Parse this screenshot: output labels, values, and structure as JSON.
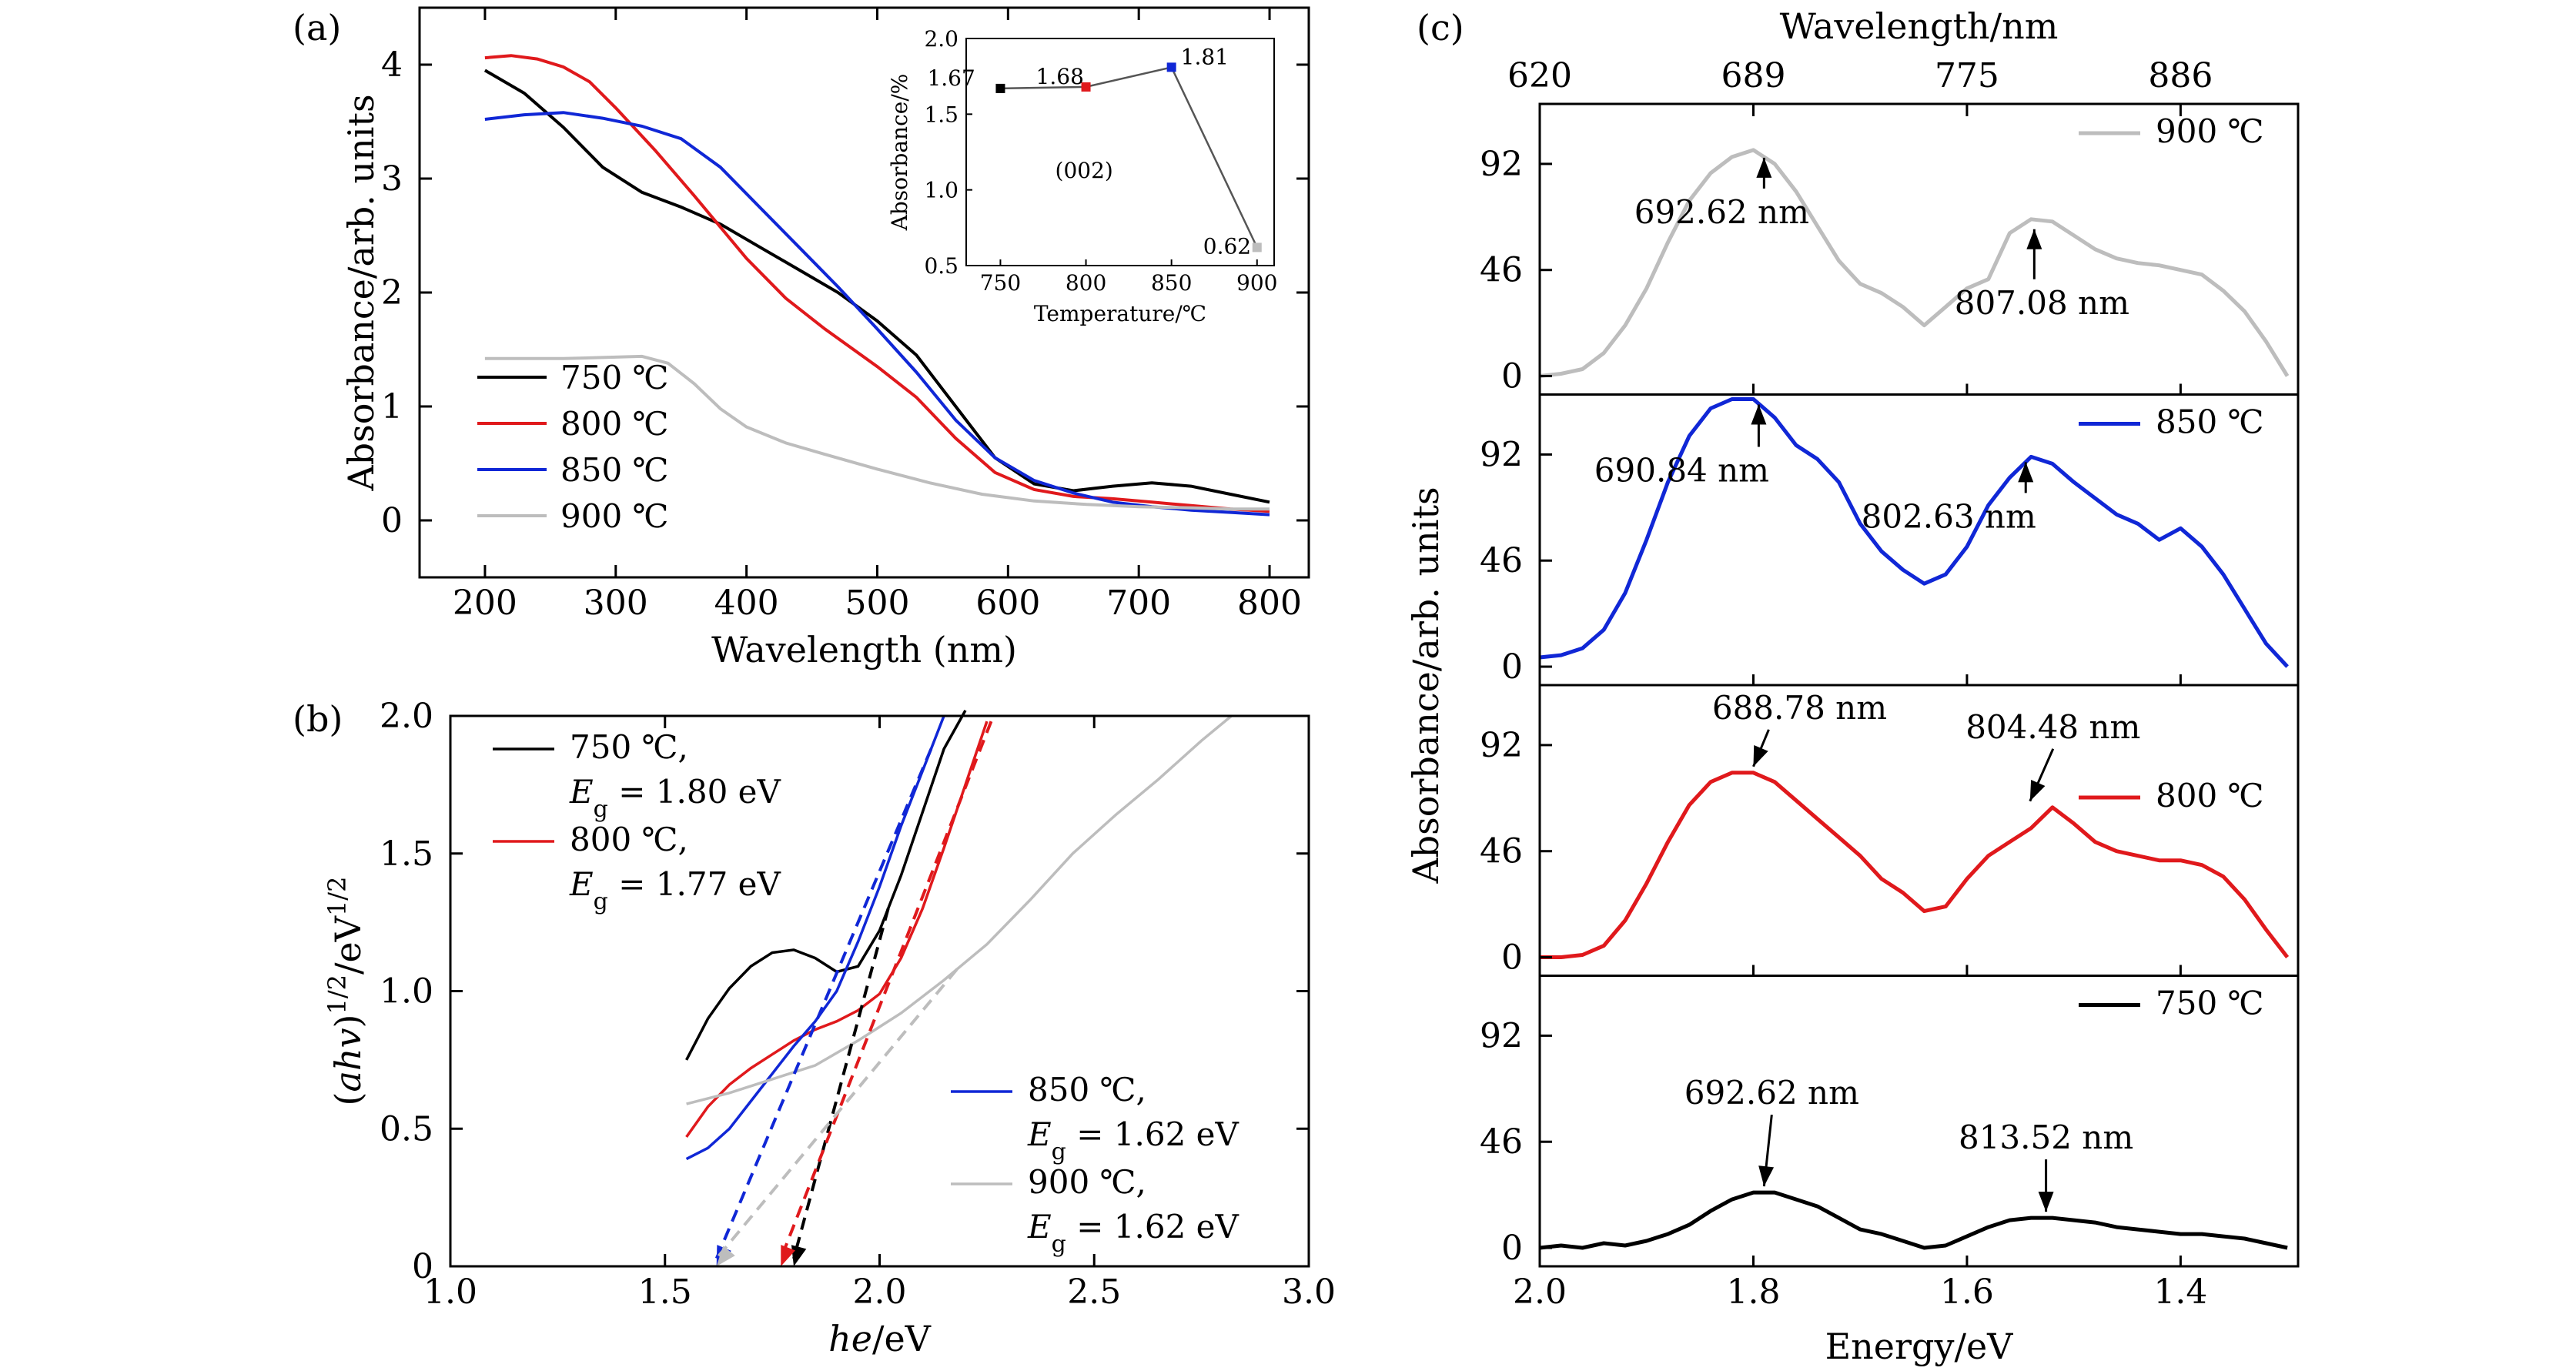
{
  "panel_labels": [
    "(a)",
    "(b)",
    "(c)"
  ],
  "colors": {
    "750": "#000000",
    "800": "#e0191c",
    "850": "#1027d6",
    "900": "#bdbdbd"
  },
  "chart_data": [
    {
      "id": "a",
      "type": "line",
      "xlabel": "Wavelength (nm)",
      "ylabel": "Absorbance/arb. units",
      "xlim": [
        150,
        830
      ],
      "ylim": [
        -0.5,
        4.5
      ],
      "xticks": [
        200,
        300,
        400,
        500,
        600,
        700,
        800
      ],
      "yticks": [
        0,
        1,
        2,
        3,
        4
      ],
      "legend_position": "bottom-left",
      "series": [
        {
          "name": "750 ℃",
          "color": "#000000",
          "x": [
            200,
            230,
            260,
            290,
            320,
            350,
            380,
            410,
            440,
            470,
            500,
            530,
            560,
            590,
            620,
            650,
            680,
            710,
            740,
            770,
            800
          ],
          "y": [
            3.95,
            3.75,
            3.45,
            3.1,
            2.88,
            2.75,
            2.6,
            2.4,
            2.2,
            2.0,
            1.75,
            1.45,
            1.0,
            0.55,
            0.32,
            0.26,
            0.3,
            0.33,
            0.3,
            0.23,
            0.16
          ]
        },
        {
          "name": "800 ℃",
          "color": "#e0191c",
          "x": [
            200,
            220,
            240,
            260,
            280,
            300,
            330,
            360,
            400,
            430,
            460,
            500,
            530,
            560,
            590,
            620,
            650,
            680,
            710,
            740,
            770,
            800
          ],
          "y": [
            4.06,
            4.08,
            4.05,
            3.98,
            3.85,
            3.62,
            3.25,
            2.85,
            2.3,
            1.95,
            1.68,
            1.35,
            1.08,
            0.72,
            0.42,
            0.27,
            0.21,
            0.19,
            0.16,
            0.13,
            0.1,
            0.08
          ]
        },
        {
          "name": "850 ℃",
          "color": "#1027d6",
          "x": [
            200,
            230,
            260,
            290,
            320,
            350,
            380,
            410,
            440,
            470,
            500,
            530,
            560,
            590,
            620,
            650,
            680,
            710,
            740,
            770,
            800
          ],
          "y": [
            3.52,
            3.56,
            3.58,
            3.53,
            3.46,
            3.35,
            3.1,
            2.75,
            2.4,
            2.05,
            1.68,
            1.3,
            0.88,
            0.55,
            0.35,
            0.24,
            0.16,
            0.12,
            0.09,
            0.07,
            0.05
          ]
        },
        {
          "name": "900 ℃",
          "color": "#bdbdbd",
          "x": [
            200,
            230,
            260,
            290,
            320,
            340,
            360,
            380,
            400,
            430,
            460,
            500,
            540,
            580,
            620,
            660,
            700,
            740,
            770,
            800
          ],
          "y": [
            1.42,
            1.42,
            1.42,
            1.43,
            1.44,
            1.38,
            1.2,
            0.98,
            0.82,
            0.68,
            0.58,
            0.45,
            0.33,
            0.23,
            0.17,
            0.14,
            0.12,
            0.11,
            0.1,
            0.1
          ]
        }
      ],
      "inset": {
        "type": "line",
        "xlabel": "Temperature/℃",
        "ylabel": "Absorbance/%",
        "xlim": [
          730,
          910
        ],
        "ylim": [
          0.5,
          2.0
        ],
        "xticks": [
          750,
          800,
          850,
          900
        ],
        "yticks": [
          0.5,
          1.0,
          1.5,
          2.0
        ],
        "annotation": "(002)",
        "x": [
          750,
          800,
          850,
          900
        ],
        "y": [
          1.67,
          1.68,
          1.81,
          0.62
        ],
        "labels": [
          "1.67",
          "1.68",
          "1.81",
          "0.62"
        ],
        "point_colors": [
          "#000000",
          "#e0191c",
          "#1027d6",
          "#bdbdbd"
        ]
      }
    },
    {
      "id": "b",
      "type": "line",
      "xlabel": "he/eV",
      "ylabel": "(ahv)^1/2/eV^1/2",
      "xlim": [
        1.0,
        3.0
      ],
      "ylim": [
        0,
        2.0
      ],
      "xticks": [
        "1.0",
        "1.5",
        "2.0",
        "2.5",
        "3.0"
      ],
      "yticks": [
        "0",
        "0.5",
        "1.0",
        "1.5",
        "2.0"
      ],
      "legend": [
        {
          "temp": "750 ℃,",
          "eg": "= 1.80 eV",
          "color": "#000000"
        },
        {
          "temp": "800 ℃,",
          "eg": "= 1.77 eV",
          "color": "#e0191c"
        },
        {
          "temp": "850 ℃,",
          "eg": "= 1.62 eV",
          "color": "#1027d6"
        },
        {
          "temp": "900 ℃,",
          "eg": "= 1.62 eV",
          "color": "#bdbdbd"
        }
      ],
      "series": [
        {
          "name": "750 ℃",
          "color": "#000000",
          "x": [
            1.55,
            1.6,
            1.65,
            1.7,
            1.75,
            1.8,
            1.85,
            1.9,
            1.95,
            2.0,
            2.05,
            2.1,
            2.15,
            2.2
          ],
          "y": [
            0.75,
            0.9,
            1.01,
            1.09,
            1.14,
            1.15,
            1.12,
            1.07,
            1.09,
            1.22,
            1.42,
            1.65,
            1.88,
            2.02
          ]
        },
        {
          "name": "800 ℃",
          "color": "#e0191c",
          "x": [
            1.55,
            1.6,
            1.65,
            1.7,
            1.75,
            1.8,
            1.85,
            1.9,
            1.95,
            2.0,
            2.05,
            2.1,
            2.15,
            2.2,
            2.25
          ],
          "y": [
            0.47,
            0.58,
            0.66,
            0.72,
            0.77,
            0.82,
            0.86,
            0.89,
            0.93,
            0.99,
            1.12,
            1.3,
            1.52,
            1.75,
            1.98
          ]
        },
        {
          "name": "850 ℃",
          "color": "#1027d6",
          "x": [
            1.55,
            1.6,
            1.65,
            1.7,
            1.75,
            1.8,
            1.85,
            1.9,
            1.95,
            2.0,
            2.05,
            2.1,
            2.15
          ],
          "y": [
            0.39,
            0.43,
            0.5,
            0.6,
            0.7,
            0.8,
            0.89,
            1.0,
            1.18,
            1.38,
            1.6,
            1.8,
            2.0
          ]
        },
        {
          "name": "900 ℃",
          "color": "#bdbdbd",
          "x": [
            1.55,
            1.65,
            1.75,
            1.85,
            1.95,
            2.05,
            2.15,
            2.25,
            2.35,
            2.45,
            2.55,
            2.65,
            2.75,
            2.82
          ],
          "y": [
            0.59,
            0.63,
            0.68,
            0.73,
            0.82,
            0.92,
            1.04,
            1.17,
            1.33,
            1.5,
            1.64,
            1.77,
            1.91,
            2.0
          ]
        }
      ],
      "tangents": [
        {
          "color": "#000000",
          "x0": 1.8,
          "x1": 2.02
        },
        {
          "color": "#e0191c",
          "x0": 1.77,
          "x1": 2.26
        },
        {
          "color": "#1027d6",
          "x0": 1.62,
          "x1": 2.12
        },
        {
          "color": "#bdbdbd",
          "x0": 1.62,
          "x1": 2.18
        }
      ]
    },
    {
      "id": "c",
      "type": "line",
      "xlabel": "Energy/eV",
      "ylabel": "Absorbance/arb. units",
      "top_xlabel": "Wavelength/nm",
      "top_xticks": [
        {
          "label": "620",
          "e": 2.0
        },
        {
          "label": "689",
          "e": 1.8
        },
        {
          "label": "775",
          "e": 1.6
        },
        {
          "label": "886",
          "e": 1.4
        }
      ],
      "xlim": [
        2.0,
        1.29
      ],
      "xticks": [
        "2.0",
        "1.8",
        "1.6",
        "1.4"
      ],
      "ylim": [
        -8,
        118
      ],
      "yticks": [
        0,
        46,
        92
      ],
      "subplots": [
        {
          "name": "900 ℃",
          "color": "#bdbdbd",
          "x": [
            2.0,
            1.98,
            1.96,
            1.94,
            1.92,
            1.9,
            1.88,
            1.86,
            1.84,
            1.82,
            1.8,
            1.78,
            1.76,
            1.74,
            1.72,
            1.7,
            1.68,
            1.66,
            1.64,
            1.62,
            1.6,
            1.58,
            1.56,
            1.54,
            1.52,
            1.5,
            1.48,
            1.46,
            1.44,
            1.42,
            1.4,
            1.38,
            1.36,
            1.34,
            1.32,
            1.3
          ],
          "y": [
            0,
            1,
            3,
            10,
            22,
            38,
            58,
            76,
            88,
            95,
            98,
            92,
            80,
            65,
            50,
            40,
            36,
            30,
            22,
            30,
            38,
            42,
            62,
            68,
            67,
            61,
            55,
            51,
            49,
            48,
            46,
            44,
            37,
            28,
            15,
            0
          ],
          "peaks": [
            {
              "label": "692.62 nm",
              "e": 1.79,
              "v": 98
            },
            {
              "label": "807.08 nm",
              "e": 1.537,
              "v": 67
            }
          ]
        },
        {
          "name": "850 ℃",
          "color": "#1027d6",
          "x": [
            2.0,
            1.98,
            1.96,
            1.94,
            1.92,
            1.9,
            1.88,
            1.86,
            1.84,
            1.82,
            1.8,
            1.78,
            1.76,
            1.74,
            1.72,
            1.7,
            1.68,
            1.66,
            1.64,
            1.62,
            1.6,
            1.58,
            1.56,
            1.54,
            1.52,
            1.5,
            1.48,
            1.46,
            1.44,
            1.42,
            1.4,
            1.38,
            1.36,
            1.34,
            1.32,
            1.3
          ],
          "y": [
            4,
            5,
            8,
            16,
            32,
            55,
            80,
            100,
            112,
            116,
            116,
            108,
            96,
            90,
            80,
            62,
            50,
            42,
            36,
            40,
            52,
            70,
            82,
            91,
            88,
            80,
            73,
            66,
            62,
            55,
            60,
            52,
            40,
            25,
            10,
            0
          ],
          "peaks": [
            {
              "label": "690.84 nm",
              "e": 1.795,
              "v": 117
            },
            {
              "label": "802.63 nm",
              "e": 1.545,
              "v": 92
            }
          ]
        },
        {
          "name": "800 ℃",
          "color": "#e0191c",
          "x": [
            2.0,
            1.98,
            1.96,
            1.94,
            1.92,
            1.9,
            1.88,
            1.86,
            1.84,
            1.82,
            1.8,
            1.78,
            1.76,
            1.74,
            1.72,
            1.7,
            1.68,
            1.66,
            1.64,
            1.62,
            1.6,
            1.58,
            1.56,
            1.54,
            1.52,
            1.5,
            1.48,
            1.46,
            1.44,
            1.42,
            1.4,
            1.38,
            1.36,
            1.34,
            1.32,
            1.3
          ],
          "y": [
            0,
            0,
            1,
            5,
            16,
            32,
            50,
            66,
            76,
            80,
            80,
            76,
            68,
            60,
            52,
            44,
            34,
            28,
            20,
            22,
            34,
            44,
            50,
            56,
            65,
            58,
            50,
            46,
            44,
            42,
            42,
            40,
            35,
            25,
            12,
            0
          ],
          "peaks": [
            {
              "label": "688.78 nm",
              "e": 1.8,
              "v": 80
            },
            {
              "label": "804.48 nm",
              "e": 1.541,
              "v": 65
            }
          ]
        },
        {
          "name": "750 ℃",
          "color": "#000000",
          "x": [
            2.0,
            1.98,
            1.96,
            1.94,
            1.92,
            1.9,
            1.88,
            1.86,
            1.84,
            1.82,
            1.8,
            1.78,
            1.76,
            1.74,
            1.72,
            1.7,
            1.68,
            1.66,
            1.64,
            1.62,
            1.6,
            1.58,
            1.56,
            1.54,
            1.52,
            1.5,
            1.48,
            1.46,
            1.44,
            1.42,
            1.4,
            1.38,
            1.36,
            1.34,
            1.32,
            1.3
          ],
          "y": [
            0,
            1,
            0,
            2,
            1,
            3,
            6,
            10,
            16,
            21,
            24,
            24,
            21,
            18,
            13,
            8,
            6,
            3,
            0,
            1,
            5,
            9,
            12,
            13,
            13,
            12,
            11,
            9,
            8,
            7,
            6,
            6,
            5,
            4,
            2,
            0
          ],
          "peaks": [
            {
              "label": "692.62 nm",
              "e": 1.79,
              "v": 24
            },
            {
              "label": "813.52 nm",
              "e": 1.526,
              "v": 13
            }
          ]
        }
      ]
    }
  ]
}
